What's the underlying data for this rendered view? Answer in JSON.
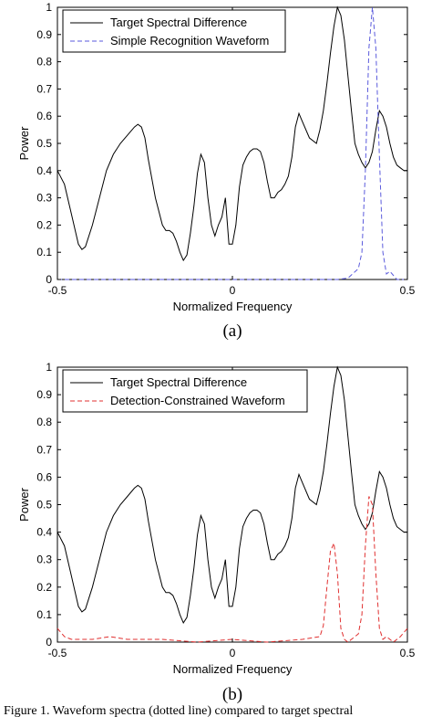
{
  "figure": {
    "caption": "Figure 1.  Waveform spectra (dotted line) compared to target spectral"
  },
  "chart_data": [
    {
      "type": "line",
      "panel_label": "(a)",
      "xlabel": "Normalized Frequency",
      "ylabel": "Power",
      "xlim": [
        -0.5,
        0.5
      ],
      "ylim": [
        0,
        1
      ],
      "xticks": [
        -0.5,
        0,
        0.5
      ],
      "xtick_labels": [
        "-0.5",
        "0",
        "0.5"
      ],
      "yticks": [
        0,
        0.1,
        0.2,
        0.3,
        0.4,
        0.5,
        0.6,
        0.7,
        0.8,
        0.9,
        1
      ],
      "ytick_labels": [
        "0",
        "0.1",
        "0.2",
        "0.3",
        "0.4",
        "0.5",
        "0.6",
        "0.7",
        "0.8",
        "0.9",
        "1"
      ],
      "grid": false,
      "legend_position": "top-left",
      "series": [
        {
          "name": "Target Spectral Difference",
          "color": "#000000",
          "style": "solid",
          "x": [
            -0.5,
            -0.48,
            -0.46,
            -0.44,
            -0.43,
            -0.42,
            -0.4,
            -0.38,
            -0.36,
            -0.34,
            -0.32,
            -0.3,
            -0.28,
            -0.27,
            -0.26,
            -0.25,
            -0.24,
            -0.22,
            -0.2,
            -0.19,
            -0.18,
            -0.17,
            -0.16,
            -0.15,
            -0.14,
            -0.13,
            -0.12,
            -0.11,
            -0.1,
            -0.09,
            -0.08,
            -0.07,
            -0.06,
            -0.05,
            -0.04,
            -0.03,
            -0.02,
            -0.01,
            0,
            0.01,
            0.02,
            0.03,
            0.04,
            0.05,
            0.06,
            0.07,
            0.08,
            0.09,
            0.1,
            0.11,
            0.12,
            0.13,
            0.14,
            0.15,
            0.16,
            0.17,
            0.18,
            0.19,
            0.2,
            0.22,
            0.24,
            0.25,
            0.26,
            0.27,
            0.28,
            0.29,
            0.3,
            0.31,
            0.32,
            0.33,
            0.34,
            0.35,
            0.36,
            0.37,
            0.38,
            0.39,
            0.4,
            0.41,
            0.42,
            0.43,
            0.44,
            0.45,
            0.46,
            0.47,
            0.48,
            0.49,
            0.5
          ],
          "y": [
            0.4,
            0.35,
            0.24,
            0.13,
            0.11,
            0.12,
            0.2,
            0.3,
            0.4,
            0.46,
            0.5,
            0.53,
            0.56,
            0.57,
            0.56,
            0.52,
            0.44,
            0.3,
            0.2,
            0.18,
            0.18,
            0.17,
            0.14,
            0.1,
            0.07,
            0.09,
            0.17,
            0.27,
            0.39,
            0.46,
            0.43,
            0.3,
            0.2,
            0.16,
            0.2,
            0.23,
            0.3,
            0.13,
            0.13,
            0.2,
            0.34,
            0.42,
            0.45,
            0.47,
            0.48,
            0.48,
            0.47,
            0.43,
            0.36,
            0.3,
            0.3,
            0.32,
            0.33,
            0.35,
            0.38,
            0.45,
            0.56,
            0.61,
            0.58,
            0.52,
            0.5,
            0.55,
            0.62,
            0.72,
            0.83,
            0.93,
            1.0,
            0.97,
            0.88,
            0.75,
            0.62,
            0.5,
            0.46,
            0.43,
            0.41,
            0.43,
            0.47,
            0.55,
            0.62,
            0.6,
            0.56,
            0.5,
            0.45,
            0.42,
            0.41,
            0.4,
            0.4
          ]
        },
        {
          "name": "Simple Recognition Waveform",
          "color": "#5a5adc",
          "style": "dashed",
          "x": [
            -0.5,
            -0.3,
            -0.1,
            0.1,
            0.3,
            0.33,
            0.36,
            0.37,
            0.38,
            0.39,
            0.4,
            0.41,
            0.42,
            0.43,
            0.44,
            0.45,
            0.47,
            0.5
          ],
          "y": [
            0.0,
            0.0,
            0.0,
            0.0,
            0.0,
            0.005,
            0.04,
            0.1,
            0.4,
            0.85,
            1.0,
            0.85,
            0.45,
            0.1,
            0.02,
            0.03,
            0.0,
            0.0
          ]
        }
      ]
    },
    {
      "type": "line",
      "panel_label": "(b)",
      "xlabel": "Normalized Frequency",
      "ylabel": "Power",
      "xlim": [
        -0.5,
        0.5
      ],
      "ylim": [
        0,
        1
      ],
      "xticks": [
        -0.5,
        0,
        0.5
      ],
      "xtick_labels": [
        "-0.5",
        "0",
        "0.5"
      ],
      "yticks": [
        0,
        0.1,
        0.2,
        0.3,
        0.4,
        0.5,
        0.6,
        0.7,
        0.8,
        0.9,
        1
      ],
      "ytick_labels": [
        "0",
        "0.1",
        "0.2",
        "0.3",
        "0.4",
        "0.5",
        "0.6",
        "0.7",
        "0.8",
        "0.9",
        "1"
      ],
      "grid": false,
      "legend_position": "top-left",
      "series": [
        {
          "name": "Target Spectral Difference",
          "color": "#000000",
          "style": "solid",
          "x": [
            -0.5,
            -0.48,
            -0.46,
            -0.44,
            -0.43,
            -0.42,
            -0.4,
            -0.38,
            -0.36,
            -0.34,
            -0.32,
            -0.3,
            -0.28,
            -0.27,
            -0.26,
            -0.25,
            -0.24,
            -0.22,
            -0.2,
            -0.19,
            -0.18,
            -0.17,
            -0.16,
            -0.15,
            -0.14,
            -0.13,
            -0.12,
            -0.11,
            -0.1,
            -0.09,
            -0.08,
            -0.07,
            -0.06,
            -0.05,
            -0.04,
            -0.03,
            -0.02,
            -0.01,
            0,
            0.01,
            0.02,
            0.03,
            0.04,
            0.05,
            0.06,
            0.07,
            0.08,
            0.09,
            0.1,
            0.11,
            0.12,
            0.13,
            0.14,
            0.15,
            0.16,
            0.17,
            0.18,
            0.19,
            0.2,
            0.22,
            0.24,
            0.25,
            0.26,
            0.27,
            0.28,
            0.29,
            0.3,
            0.31,
            0.32,
            0.33,
            0.34,
            0.35,
            0.36,
            0.37,
            0.38,
            0.39,
            0.4,
            0.41,
            0.42,
            0.43,
            0.44,
            0.45,
            0.46,
            0.47,
            0.48,
            0.49,
            0.5
          ],
          "y": [
            0.4,
            0.35,
            0.24,
            0.13,
            0.11,
            0.12,
            0.2,
            0.3,
            0.4,
            0.46,
            0.5,
            0.53,
            0.56,
            0.57,
            0.56,
            0.52,
            0.44,
            0.3,
            0.2,
            0.18,
            0.18,
            0.17,
            0.14,
            0.1,
            0.07,
            0.09,
            0.17,
            0.27,
            0.39,
            0.46,
            0.43,
            0.3,
            0.2,
            0.16,
            0.2,
            0.23,
            0.3,
            0.13,
            0.13,
            0.2,
            0.34,
            0.42,
            0.45,
            0.47,
            0.48,
            0.48,
            0.47,
            0.43,
            0.36,
            0.3,
            0.3,
            0.32,
            0.33,
            0.35,
            0.38,
            0.45,
            0.56,
            0.61,
            0.58,
            0.52,
            0.5,
            0.55,
            0.62,
            0.72,
            0.83,
            0.93,
            1.0,
            0.97,
            0.88,
            0.75,
            0.62,
            0.5,
            0.46,
            0.43,
            0.41,
            0.43,
            0.47,
            0.55,
            0.62,
            0.6,
            0.56,
            0.5,
            0.45,
            0.42,
            0.41,
            0.4,
            0.4
          ]
        },
        {
          "name": "Detection-Constrained Waveform",
          "color": "#e03030",
          "style": "dashed",
          "x": [
            -0.5,
            -0.48,
            -0.46,
            -0.44,
            -0.4,
            -0.35,
            -0.3,
            -0.2,
            -0.1,
            0.0,
            0.1,
            0.2,
            0.25,
            0.26,
            0.27,
            0.28,
            0.29,
            0.3,
            0.31,
            0.32,
            0.33,
            0.34,
            0.36,
            0.37,
            0.38,
            0.39,
            0.4,
            0.41,
            0.42,
            0.43,
            0.44,
            0.46,
            0.48,
            0.5
          ],
          "y": [
            0.05,
            0.02,
            0.01,
            0.01,
            0.01,
            0.02,
            0.01,
            0.01,
            0.0,
            0.01,
            0.0,
            0.01,
            0.02,
            0.06,
            0.2,
            0.33,
            0.36,
            0.25,
            0.05,
            0.01,
            0.0,
            0.01,
            0.03,
            0.1,
            0.35,
            0.53,
            0.5,
            0.25,
            0.05,
            0.01,
            0.02,
            0.0,
            0.02,
            0.05
          ]
        }
      ]
    }
  ]
}
